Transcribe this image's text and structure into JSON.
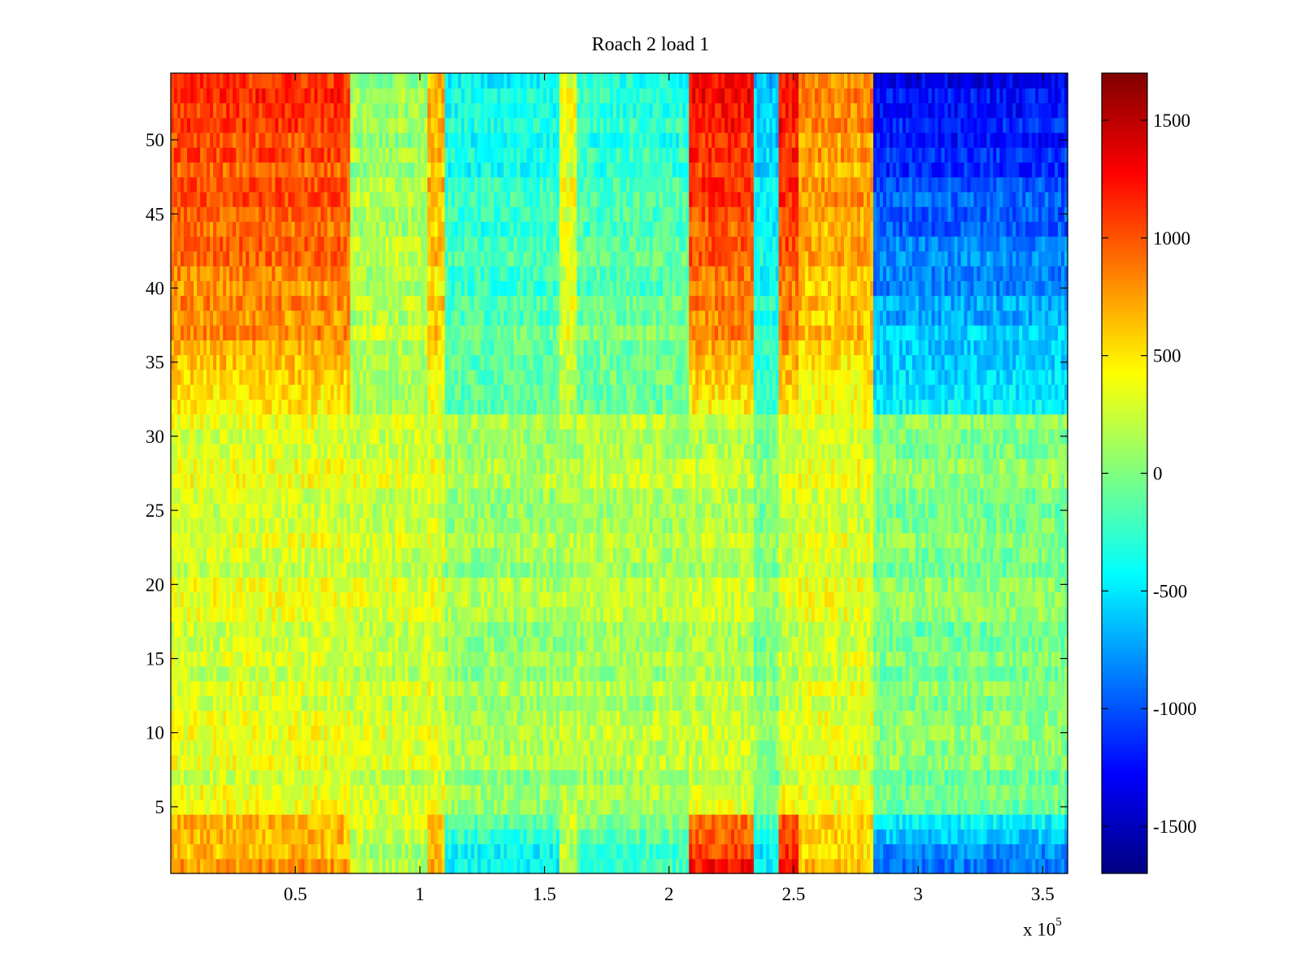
{
  "chart_data": {
    "type": "heatmap",
    "title": "Roach 2 load 1",
    "xlabel": "",
    "ylabel": "",
    "x_multiplier": {
      "base": "x 10",
      "exponent": "5"
    },
    "xlim": [
      0,
      360000
    ],
    "ylim": [
      0.5,
      54.5
    ],
    "x_ticks": [
      50000,
      100000,
      150000,
      200000,
      250000,
      300000,
      350000
    ],
    "x_tick_labels": [
      "0.5",
      "1",
      "1.5",
      "2",
      "2.5",
      "3",
      "3.5"
    ],
    "y_ticks": [
      5,
      10,
      15,
      20,
      25,
      30,
      35,
      40,
      45,
      50
    ],
    "y_tick_labels": [
      "5",
      "10",
      "15",
      "20",
      "25",
      "30",
      "35",
      "40",
      "45",
      "50"
    ],
    "rows": 54,
    "colorbar": {
      "colormap": "jet",
      "clim": [
        -1700,
        1700
      ],
      "ticks": [
        -1500,
        -1000,
        -500,
        0,
        500,
        1000,
        1500
      ],
      "tick_labels": [
        "-1500",
        "-1000",
        "-500",
        "0",
        "500",
        "1000",
        "1500"
      ]
    },
    "segments": [
      {
        "x": [
          0,
          72000
        ],
        "top_level": 1150,
        "bottom_level": 750,
        "mid_level": 300
      },
      {
        "x": [
          72000,
          103000
        ],
        "top_level": 100,
        "bottom_level": 150,
        "mid_level": 250
      },
      {
        "x": [
          103000,
          110000
        ],
        "top_level": 700,
        "bottom_level": 700,
        "mid_level": 300
      },
      {
        "x": [
          110000,
          156000
        ],
        "top_level": -400,
        "bottom_level": -450,
        "mid_level": 100
      },
      {
        "x": [
          156000,
          163000
        ],
        "top_level": 400,
        "bottom_level": 200,
        "mid_level": 150
      },
      {
        "x": [
          163000,
          208000
        ],
        "top_level": -300,
        "bottom_level": -250,
        "mid_level": 150
      },
      {
        "x": [
          208000,
          234000
        ],
        "top_level": 1300,
        "bottom_level": 1200,
        "mid_level": 200
      },
      {
        "x": [
          234000,
          244000
        ],
        "top_level": -600,
        "bottom_level": -500,
        "mid_level": 0
      },
      {
        "x": [
          244000,
          252000
        ],
        "top_level": 1300,
        "bottom_level": 1300,
        "mid_level": 250
      },
      {
        "x": [
          252000,
          282000
        ],
        "top_level": 850,
        "bottom_level": 600,
        "mid_level": 300
      },
      {
        "x": [
          282000,
          360000
        ],
        "top_level": -1300,
        "bottom_level": -900,
        "mid_level": 0
      }
    ]
  }
}
